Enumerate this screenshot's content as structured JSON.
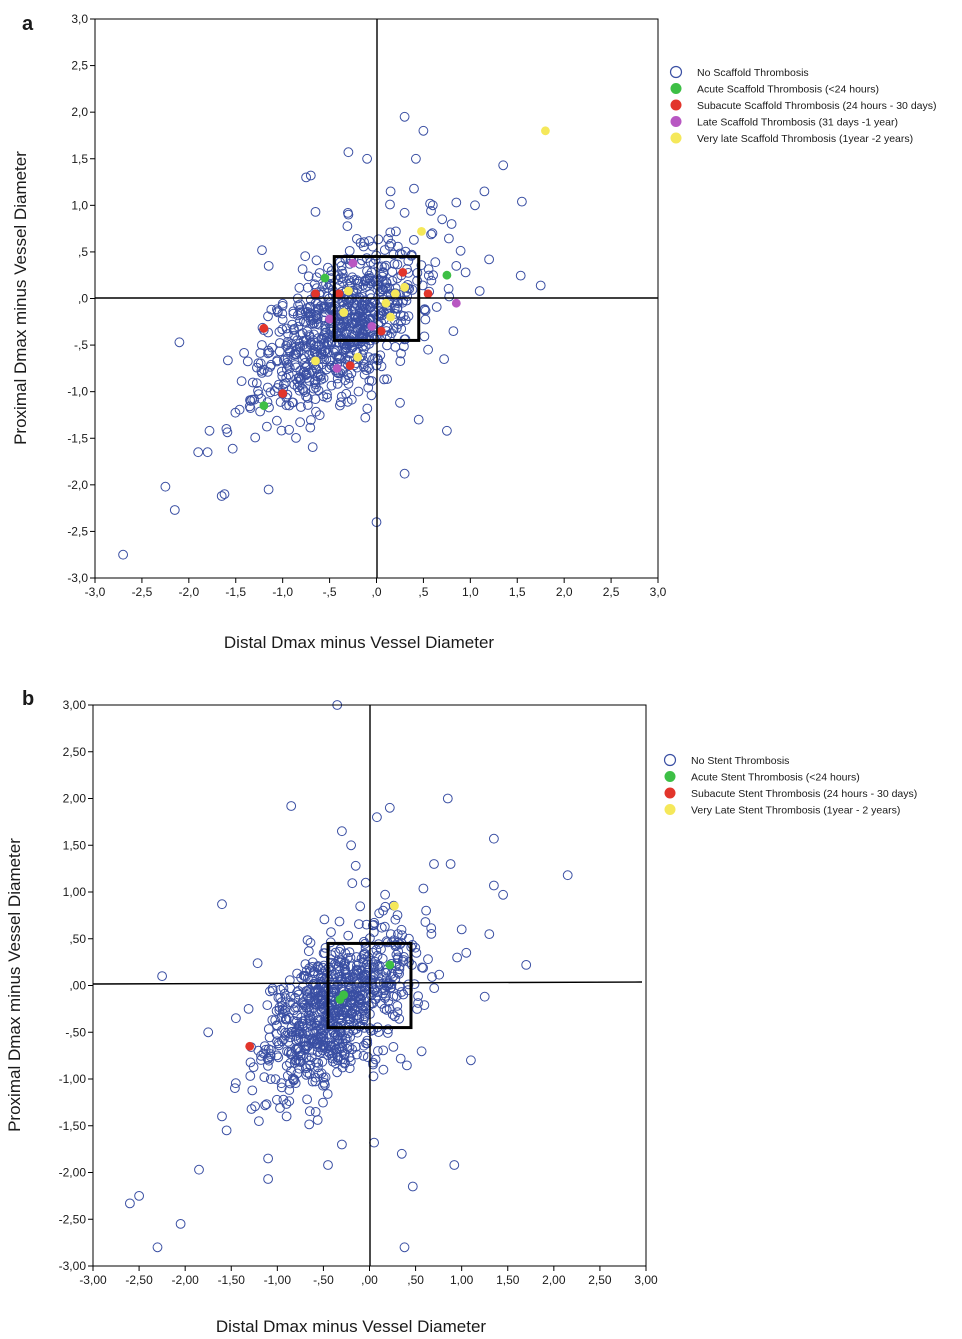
{
  "chart_data": [
    {
      "type": "scatter",
      "panel_label": "a",
      "xlabel": "Distal Dmax minus Vessel Diameter",
      "ylabel": "Proximal Dmax minus Vessel Diameter",
      "xlim": [
        -3.0,
        3.0
      ],
      "ylim": [
        -3.0,
        3.0
      ],
      "xticks": [
        -3.0,
        -2.5,
        -2.0,
        -1.5,
        -1.0,
        -0.5,
        0.0,
        0.5,
        1.0,
        1.5,
        2.0,
        2.5,
        3.0
      ],
      "yticks": [
        -3.0,
        -2.5,
        -2.0,
        -1.5,
        -1.0,
        -0.5,
        0.0,
        0.5,
        1.0,
        1.5,
        2.0,
        2.5,
        3.0
      ],
      "xtick_labels": [
        "-3,0",
        "-2,5",
        "-2,0",
        "-1,5",
        "-1,0",
        "-,5",
        ",0",
        ",5",
        "1,0",
        "1,5",
        "2,0",
        "2,5",
        "3,0"
      ],
      "ytick_labels": [
        "-3,0",
        "-2,5",
        "-2,0",
        "-1,5",
        "-1,0",
        "-,5",
        ",0",
        ",5",
        "1,0",
        "1,5",
        "2,0",
        "2,5",
        "3,0"
      ],
      "reference_lines": {
        "x": 0,
        "y": 0
      },
      "box": {
        "x": [
          -0.45,
          0.45
        ],
        "y": [
          -0.45,
          0.45
        ]
      },
      "grid": false,
      "legend_position": "right",
      "series": [
        {
          "name": "No Scaffold Thrombosis",
          "marker": "open-circle",
          "color": "#3a4fa3",
          "generated_cluster": {
            "count": 780,
            "mean": [
              -0.4,
              -0.3
            ],
            "std": [
              0.42,
              0.45
            ],
            "correlation": 0.55
          },
          "points": [
            [
              -2.7,
              -2.75
            ],
            [
              -2.25,
              -2.02
            ],
            [
              -2.15,
              -2.27
            ],
            [
              -2.1,
              -0.47
            ],
            [
              -1.15,
              -2.05
            ],
            [
              0.0,
              -2.4
            ],
            [
              0.3,
              -1.88
            ],
            [
              -1.65,
              -2.12
            ],
            [
              -1.62,
              -2.1
            ],
            [
              -1.9,
              -1.65
            ],
            [
              -1.8,
              -1.65
            ],
            [
              -1.78,
              -1.42
            ],
            [
              -1.6,
              -1.4
            ],
            [
              0.75,
              -1.42
            ],
            [
              0.45,
              -1.3
            ],
            [
              0.25,
              -1.12
            ],
            [
              0.3,
              1.95
            ],
            [
              0.5,
              1.8
            ],
            [
              -0.3,
              1.57
            ],
            [
              -0.1,
              1.5
            ],
            [
              0.42,
              1.5
            ],
            [
              -0.75,
              1.3
            ],
            [
              -0.7,
              1.32
            ],
            [
              1.35,
              1.43
            ],
            [
              1.15,
              1.15
            ],
            [
              0.15,
              1.15
            ],
            [
              0.4,
              1.18
            ],
            [
              1.55,
              1.04
            ],
            [
              0.85,
              1.03
            ],
            [
              1.05,
              1.0
            ],
            [
              1.75,
              0.14
            ],
            [
              1.2,
              0.42
            ],
            [
              1.1,
              0.08
            ],
            [
              0.7,
              0.85
            ],
            [
              0.8,
              0.8
            ],
            [
              -0.65,
              0.93
            ],
            [
              -0.3,
              0.9
            ],
            [
              0.3,
              0.92
            ],
            [
              -1.22,
              0.52
            ],
            [
              0.95,
              0.28
            ],
            [
              0.85,
              0.35
            ],
            [
              0.82,
              -0.35
            ],
            [
              0.72,
              -0.65
            ],
            [
              0.55,
              -0.55
            ],
            [
              0.6,
              1.0
            ]
          ]
        },
        {
          "name": "Acute Scaffold Thrombosis (<24 hours)",
          "marker": "filled-circle",
          "color": "#3dbf45",
          "points": [
            [
              -0.55,
              0.22
            ],
            [
              0.75,
              0.25
            ],
            [
              -1.2,
              -1.15
            ]
          ]
        },
        {
          "name": "Subacute Scaffold Thrombosis (24 hours - 30 days)",
          "marker": "filled-circle",
          "color": "#e2352b",
          "points": [
            [
              0.28,
              0.28
            ],
            [
              0.55,
              0.05
            ],
            [
              -0.65,
              0.05
            ],
            [
              -0.4,
              0.05
            ],
            [
              -1.2,
              -0.32
            ],
            [
              0.05,
              -0.35
            ],
            [
              -0.28,
              -0.72
            ],
            [
              -1.0,
              -1.02
            ]
          ]
        },
        {
          "name": "Late Scaffold Thrombosis (31 days -1 year)",
          "marker": "filled-circle",
          "color": "#b857c2",
          "points": [
            [
              -0.25,
              0.38
            ],
            [
              0.85,
              -0.05
            ],
            [
              -0.5,
              -0.22
            ],
            [
              -0.05,
              -0.3
            ],
            [
              -0.42,
              -0.75
            ]
          ]
        },
        {
          "name": "Very late Scaffold Thrombosis (1year -2 years)",
          "marker": "filled-circle",
          "color": "#f5e85a",
          "points": [
            [
              1.8,
              1.8
            ],
            [
              0.48,
              0.72
            ],
            [
              -0.3,
              0.08
            ],
            [
              0.3,
              0.12
            ],
            [
              0.2,
              0.05
            ],
            [
              0.1,
              -0.05
            ],
            [
              -0.35,
              -0.15
            ],
            [
              0.15,
              -0.2
            ],
            [
              -0.65,
              -0.67
            ],
            [
              -0.2,
              -0.63
            ]
          ]
        }
      ]
    },
    {
      "type": "scatter",
      "panel_label": "b",
      "xlabel": "Distal Dmax minus Vessel Diameter",
      "ylabel": "Proximal Dmax minus Vessel Diameter",
      "xlim": [
        -3.0,
        3.0
      ],
      "ylim": [
        -3.0,
        3.0
      ],
      "xticks": [
        -3.0,
        -2.5,
        -2.0,
        -1.5,
        -1.0,
        -0.5,
        0.0,
        0.5,
        1.0,
        1.5,
        2.0,
        2.5,
        3.0
      ],
      "yticks": [
        -3.0,
        -2.5,
        -2.0,
        -1.5,
        -1.0,
        -0.5,
        0.0,
        0.5,
        1.0,
        1.5,
        2.0,
        2.5,
        3.0
      ],
      "xtick_labels": [
        "-3,00",
        "-2,50",
        "-2,00",
        "-1,50",
        "-1,00",
        "-,50",
        ",00",
        ",50",
        "1,00",
        "1,50",
        "2,00",
        "2,50",
        "3,00"
      ],
      "ytick_labels": [
        "-3,00",
        "-2,50",
        "-2,00",
        "-1,50",
        "-1,00",
        "-,50",
        ",00",
        ",50",
        "1,00",
        "1,50",
        "2,00",
        "2,50",
        "3,00"
      ],
      "reference_lines": {
        "x": 0,
        "y": 0
      },
      "box": {
        "x": [
          -0.45,
          0.45
        ],
        "y": [
          -0.45,
          0.45
        ]
      },
      "grid": false,
      "legend_position": "right",
      "series": [
        {
          "name": "No Stent Thrombosis",
          "marker": "open-circle",
          "color": "#3a4fa3",
          "generated_cluster": {
            "count": 820,
            "mean": [
              -0.38,
              -0.25
            ],
            "std": [
              0.4,
              0.42
            ],
            "correlation": 0.5
          },
          "points": [
            [
              -2.3,
              -2.8
            ],
            [
              -2.6,
              -2.33
            ],
            [
              -2.5,
              -2.25
            ],
            [
              -2.05,
              -2.55
            ],
            [
              -1.85,
              -1.97
            ],
            [
              0.38,
              -2.8
            ],
            [
              0.47,
              -2.15
            ],
            [
              0.92,
              -1.92
            ],
            [
              -0.45,
              -1.92
            ],
            [
              -1.1,
              -2.07
            ],
            [
              -1.1,
              -1.85
            ],
            [
              -1.6,
              -1.4
            ],
            [
              -1.55,
              -1.55
            ],
            [
              -0.35,
              3.0
            ],
            [
              -0.85,
              1.92
            ],
            [
              0.08,
              1.8
            ],
            [
              0.22,
              1.9
            ],
            [
              0.85,
              2.0
            ],
            [
              1.35,
              1.57
            ],
            [
              0.88,
              1.3
            ],
            [
              1.35,
              1.07
            ],
            [
              1.45,
              0.97
            ],
            [
              2.15,
              1.18
            ],
            [
              1.7,
              0.22
            ],
            [
              1.25,
              -0.12
            ],
            [
              1.1,
              -0.8
            ],
            [
              -2.25,
              0.1
            ],
            [
              -1.6,
              0.87
            ],
            [
              -0.3,
              1.65
            ],
            [
              -0.2,
              1.5
            ],
            [
              -0.15,
              1.28
            ],
            [
              0.35,
              -1.8
            ],
            [
              0.05,
              -1.68
            ],
            [
              -0.3,
              -1.7
            ],
            [
              -1.75,
              -0.5
            ],
            [
              -1.45,
              -0.35
            ],
            [
              1.0,
              0.6
            ],
            [
              1.3,
              0.55
            ],
            [
              0.7,
              1.3
            ],
            [
              0.95,
              0.3
            ],
            [
              -0.9,
              -1.4
            ],
            [
              1.05,
              0.35
            ],
            [
              -1.2,
              -1.45
            ]
          ]
        },
        {
          "name": "Acute Stent Thrombosis (<24 hours)",
          "marker": "filled-circle",
          "color": "#3dbf45",
          "points": [
            [
              0.22,
              0.22
            ],
            [
              -0.28,
              -0.1
            ],
            [
              -0.32,
              -0.15
            ]
          ]
        },
        {
          "name": "Subacute Stent Thrombosis (24 hours - 30 days)",
          "marker": "filled-circle",
          "color": "#e2352b",
          "points": [
            [
              -1.3,
              -0.65
            ]
          ]
        },
        {
          "name": "Very Late Stent Thrombosis (1year - 2 years)",
          "marker": "filled-circle",
          "color": "#f5e85a",
          "points": [
            [
              0.27,
              0.85
            ]
          ]
        }
      ]
    }
  ]
}
